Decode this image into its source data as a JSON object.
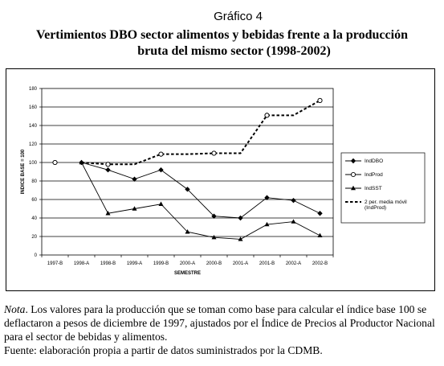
{
  "figure": {
    "label": "Gráfico 4",
    "title_line1": "Vertimientos DBO sector alimentos y bebidas frente a la producción",
    "title_line2": "bruta del mismo sector (1998-2002)"
  },
  "chart_data": {
    "type": "line",
    "categories": [
      "1997-B",
      "1998-A",
      "1998-B",
      "1999-A",
      "1999-B",
      "2000-A",
      "2000-B",
      "2001-A",
      "2001-B",
      "2002-A",
      "2002-B"
    ],
    "ylabel": "INDICE BASE = 100",
    "xlabel": "SEMESTRE",
    "ylim": [
      0,
      180
    ],
    "yticks": [
      0,
      20,
      40,
      60,
      80,
      100,
      120,
      140,
      160,
      180
    ],
    "grid": "horizontal",
    "legend_position": "right",
    "series": [
      {
        "name": "IndDBO",
        "marker": "diamond",
        "values": [
          null,
          100,
          92,
          82,
          92,
          71,
          42,
          40,
          62,
          59,
          45
        ]
      },
      {
        "name": "IndProd",
        "marker": "circle",
        "values": [
          100,
          null,
          98,
          null,
          109,
          null,
          110,
          null,
          151,
          null,
          167
        ]
      },
      {
        "name": "IndSST",
        "marker": "triangle",
        "values": [
          null,
          100,
          45,
          50,
          55,
          25,
          19,
          17,
          33,
          36,
          21
        ]
      },
      {
        "name": "2 per. media móvil (IndProd)",
        "style": "dashed",
        "values": [
          null,
          100,
          98,
          98,
          109,
          109,
          110,
          110,
          151,
          151,
          167
        ]
      }
    ]
  },
  "note": {
    "label": "Nota",
    "text": ". Los valores para la producción que se toman como base para calcular el índice base 100 se deflactaron a pesos de diciembre de 1997, ajustados por el Índice de Precios al Productor Nacional para el sector de bebidas y alimentos.",
    "source": "Fuente: elaboración propia a partir de datos suministrados por la CDMB."
  },
  "colors": {
    "line": "#000000",
    "background": "#ffffff"
  }
}
